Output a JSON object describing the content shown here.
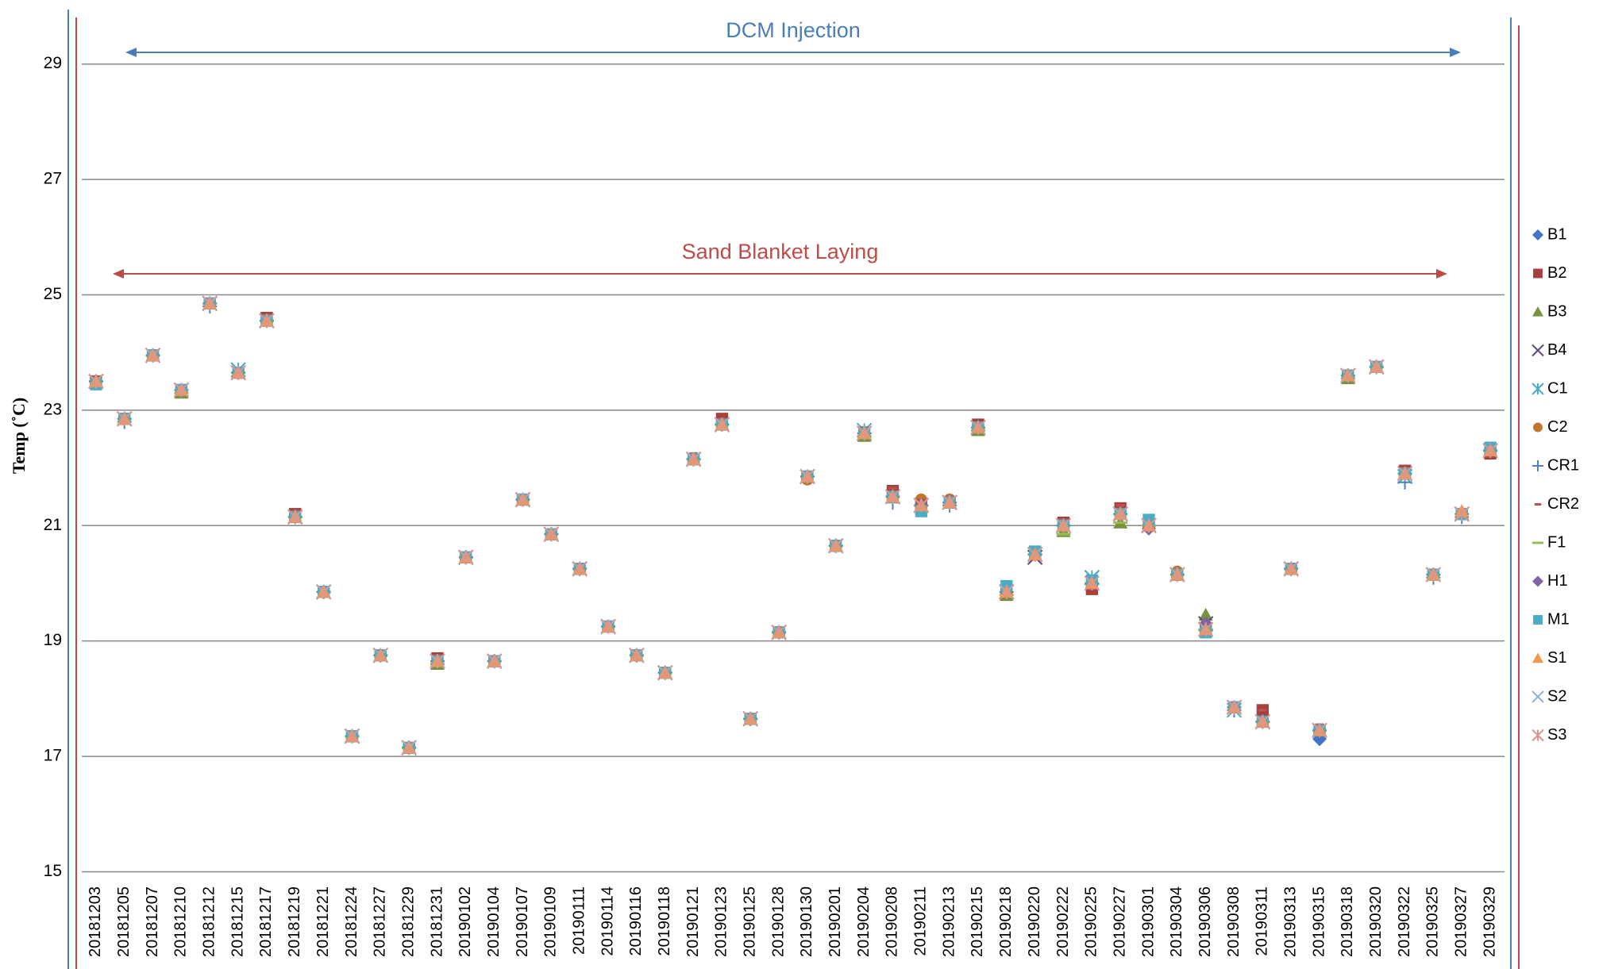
{
  "chart_data": {
    "type": "scatter",
    "y_label": "Temp (˚C)",
    "annotations": [
      {
        "text": "DCM Injection",
        "color": "#4a7ebb"
      },
      {
        "text": "Sand Blanket Laying",
        "color": "#be4b48"
      }
    ],
    "categories": [
      "20181203",
      "20181205",
      "20181207",
      "20181210",
      "20181212",
      "20181215",
      "20181217",
      "20181219",
      "20181221",
      "20181224",
      "20181227",
      "20181229",
      "20181231",
      "20190102",
      "20190104",
      "20190107",
      "20190109",
      "20190111",
      "20190114",
      "20190116",
      "20190118",
      "20190121",
      "20190123",
      "20190125",
      "20190128",
      "20190130",
      "20190201",
      "20190204",
      "20190208",
      "20190211",
      "20190213",
      "20190215",
      "20190218",
      "20190220",
      "20190222",
      "20190225",
      "20190227",
      "20190301",
      "20190304",
      "20190306",
      "20190308",
      "20190311",
      "20190313",
      "20190315",
      "20190318",
      "20190320",
      "20190322",
      "20190325",
      "20190327",
      "20190329"
    ],
    "ylim": [
      14.8,
      30
    ],
    "yticks": [
      15,
      17,
      19,
      21,
      23,
      25,
      27,
      29
    ],
    "grid": true,
    "legend": "right",
    "series": [
      {
        "name": "B1",
        "color": "#4472c4",
        "marker": "diamond",
        "values": [
          23.5,
          22.85,
          23.95,
          23.35,
          24.85,
          23.65,
          24.55,
          21.15,
          19.85,
          17.35,
          18.75,
          17.15,
          18.65,
          20.45,
          18.65,
          21.45,
          20.85,
          20.25,
          19.25,
          18.75,
          18.45,
          22.15,
          22.75,
          17.65,
          19.15,
          21.85,
          20.65,
          22.6,
          21.5,
          21.35,
          21.4,
          22.7,
          19.85,
          20.5,
          21.0,
          20.0,
          21.2,
          21.0,
          20.15,
          19.2,
          17.85,
          17.6,
          20.25,
          17.3,
          23.6,
          23.75,
          21.9,
          20.15,
          21.2,
          22.3
        ]
      },
      {
        "name": "B2",
        "color": "#a5403d",
        "marker": "square",
        "values": [
          23.5,
          22.85,
          23.95,
          23.35,
          24.85,
          23.65,
          24.6,
          21.2,
          19.85,
          17.35,
          18.75,
          17.15,
          18.7,
          20.45,
          18.65,
          21.45,
          20.85,
          20.25,
          19.25,
          18.75,
          18.45,
          22.15,
          22.85,
          17.65,
          19.15,
          21.85,
          20.65,
          22.6,
          21.6,
          21.35,
          21.4,
          22.75,
          19.8,
          20.5,
          21.05,
          19.9,
          21.3,
          21.0,
          20.15,
          19.2,
          17.85,
          17.8,
          20.25,
          17.45,
          23.6,
          23.75,
          21.95,
          20.15,
          21.2,
          22.25
        ]
      },
      {
        "name": "B3",
        "color": "#77933c",
        "marker": "triangle",
        "values": [
          23.5,
          22.85,
          23.95,
          23.3,
          24.85,
          23.65,
          24.55,
          21.15,
          19.85,
          17.35,
          18.75,
          17.15,
          18.6,
          20.45,
          18.65,
          21.45,
          20.85,
          20.25,
          19.25,
          18.75,
          18.45,
          22.15,
          22.75,
          17.65,
          19.15,
          21.85,
          20.65,
          22.55,
          21.5,
          21.35,
          21.4,
          22.65,
          19.8,
          20.5,
          20.9,
          20.0,
          21.05,
          21.0,
          20.15,
          19.45,
          17.85,
          17.6,
          20.25,
          17.45,
          23.55,
          23.75,
          21.9,
          20.15,
          21.2,
          22.3
        ]
      },
      {
        "name": "B4",
        "color": "#604a7b",
        "marker": "x",
        "values": [
          23.5,
          22.85,
          23.95,
          23.35,
          24.85,
          23.65,
          24.55,
          21.15,
          19.85,
          17.35,
          18.75,
          17.15,
          18.65,
          20.45,
          18.65,
          21.45,
          20.85,
          20.25,
          19.25,
          18.75,
          18.45,
          22.15,
          22.75,
          17.65,
          19.15,
          21.85,
          20.65,
          22.6,
          21.5,
          21.35,
          21.4,
          22.7,
          19.85,
          20.45,
          21.0,
          20.1,
          21.2,
          21.0,
          20.15,
          19.3,
          17.85,
          17.6,
          20.25,
          17.45,
          23.6,
          23.75,
          21.9,
          20.15,
          21.2,
          22.3
        ]
      },
      {
        "name": "C1",
        "color": "#4bacc6",
        "marker": "asterisk",
        "values": [
          23.5,
          22.85,
          23.95,
          23.35,
          24.85,
          23.7,
          24.55,
          21.15,
          19.85,
          17.35,
          18.75,
          17.15,
          18.65,
          20.45,
          18.65,
          21.45,
          20.85,
          20.25,
          19.25,
          18.75,
          18.45,
          22.15,
          22.75,
          17.65,
          19.15,
          21.85,
          20.65,
          22.65,
          21.5,
          21.35,
          21.4,
          22.7,
          19.85,
          20.5,
          21.0,
          20.1,
          21.2,
          21.0,
          20.15,
          19.2,
          17.8,
          17.6,
          20.25,
          17.45,
          23.6,
          23.75,
          21.85,
          20.15,
          21.2,
          22.3
        ]
      },
      {
        "name": "C2",
        "color": "#c0762e",
        "marker": "circle",
        "values": [
          23.5,
          22.85,
          23.95,
          23.35,
          24.85,
          23.65,
          24.55,
          21.15,
          19.85,
          17.35,
          18.75,
          17.15,
          18.65,
          20.45,
          18.65,
          21.45,
          20.85,
          20.25,
          19.25,
          18.75,
          18.45,
          22.15,
          22.75,
          17.65,
          19.15,
          21.8,
          20.65,
          22.6,
          21.5,
          21.45,
          21.45,
          22.7,
          19.85,
          20.5,
          21.0,
          20.0,
          21.2,
          21.0,
          20.2,
          19.2,
          17.85,
          17.6,
          20.25,
          17.45,
          23.6,
          23.75,
          21.9,
          20.15,
          21.2,
          22.3
        ]
      },
      {
        "name": "CR1",
        "color": "#4f81bd",
        "marker": "plus",
        "values": [
          23.5,
          22.8,
          23.95,
          23.35,
          24.8,
          23.65,
          24.55,
          21.15,
          19.85,
          17.35,
          18.75,
          17.15,
          18.65,
          20.45,
          18.65,
          21.45,
          20.85,
          20.25,
          19.25,
          18.75,
          18.45,
          22.15,
          22.75,
          17.65,
          19.15,
          21.85,
          20.65,
          22.6,
          21.4,
          21.35,
          21.35,
          22.7,
          19.85,
          20.5,
          21.0,
          20.0,
          21.2,
          21.0,
          20.15,
          19.2,
          17.8,
          17.6,
          20.25,
          17.45,
          23.6,
          23.75,
          21.75,
          20.1,
          21.15,
          22.3
        ]
      },
      {
        "name": "CR2",
        "color": "#c0504d",
        "marker": "dash",
        "values": [
          23.55,
          22.85,
          23.95,
          23.35,
          24.85,
          23.65,
          24.65,
          21.25,
          19.85,
          17.35,
          18.75,
          17.2,
          18.75,
          20.45,
          18.65,
          21.45,
          20.9,
          20.3,
          19.3,
          18.75,
          18.5,
          22.25,
          22.85,
          17.65,
          19.2,
          21.9,
          20.65,
          22.7,
          21.65,
          21.45,
          21.5,
          22.75,
          19.8,
          20.45,
          21.1,
          19.9,
          21.35,
          21.0,
          20.15,
          19.2,
          17.85,
          17.8,
          20.3,
          17.55,
          23.65,
          23.8,
          22.0,
          20.15,
          21.25,
          22.2
        ]
      },
      {
        "name": "F1",
        "color": "#9bbb59",
        "marker": "longdash",
        "values": [
          23.5,
          22.85,
          23.95,
          23.3,
          24.85,
          23.65,
          24.55,
          21.15,
          19.85,
          17.35,
          18.75,
          17.15,
          18.6,
          20.45,
          18.65,
          21.45,
          20.85,
          20.25,
          19.25,
          18.75,
          18.45,
          22.15,
          22.75,
          17.65,
          19.15,
          21.85,
          20.65,
          22.55,
          21.5,
          21.35,
          21.4,
          22.65,
          19.8,
          20.5,
          20.85,
          20.0,
          21.05,
          21.0,
          20.15,
          19.2,
          17.85,
          17.6,
          20.25,
          17.45,
          23.55,
          23.75,
          21.9,
          20.15,
          21.2,
          22.3
        ]
      },
      {
        "name": "H1",
        "color": "#8064a2",
        "marker": "diamond",
        "values": [
          23.5,
          22.85,
          23.95,
          23.35,
          24.85,
          23.65,
          24.55,
          21.15,
          19.85,
          17.35,
          18.75,
          17.15,
          18.65,
          20.45,
          18.65,
          21.45,
          20.85,
          20.25,
          19.25,
          18.75,
          18.45,
          22.15,
          22.75,
          17.65,
          19.15,
          21.85,
          20.65,
          22.6,
          21.5,
          21.35,
          21.4,
          22.7,
          19.85,
          20.5,
          21.0,
          20.0,
          21.2,
          20.95,
          20.15,
          19.3,
          17.85,
          17.6,
          20.25,
          17.45,
          23.6,
          23.75,
          21.9,
          20.15,
          21.2,
          22.3
        ]
      },
      {
        "name": "M1",
        "color": "#4bacc6",
        "marker": "square",
        "values": [
          23.45,
          22.85,
          23.95,
          23.35,
          24.85,
          23.65,
          24.55,
          21.15,
          19.85,
          17.35,
          18.75,
          17.15,
          18.65,
          20.45,
          18.65,
          21.45,
          20.85,
          20.25,
          19.25,
          18.75,
          18.45,
          22.15,
          22.75,
          17.65,
          19.15,
          21.85,
          20.65,
          22.6,
          21.5,
          21.25,
          21.4,
          22.7,
          19.95,
          20.55,
          21.0,
          20.05,
          21.2,
          21.1,
          20.15,
          19.15,
          17.85,
          17.6,
          20.25,
          17.45,
          23.6,
          23.75,
          21.9,
          20.15,
          21.2,
          22.35
        ]
      },
      {
        "name": "S1",
        "color": "#f79646",
        "marker": "triangle",
        "values": [
          23.5,
          22.85,
          23.95,
          23.35,
          24.85,
          23.65,
          24.55,
          21.15,
          19.85,
          17.35,
          18.75,
          17.15,
          18.65,
          20.45,
          18.65,
          21.45,
          20.85,
          20.25,
          19.25,
          18.75,
          18.45,
          22.15,
          22.75,
          17.65,
          19.15,
          21.85,
          20.65,
          22.6,
          21.5,
          21.35,
          21.4,
          22.7,
          19.85,
          20.5,
          21.0,
          20.0,
          21.2,
          21.0,
          20.15,
          19.2,
          17.85,
          17.6,
          20.25,
          17.45,
          23.6,
          23.75,
          21.9,
          20.15,
          21.25,
          22.3
        ]
      },
      {
        "name": "S2",
        "color": "#95b3d7",
        "marker": "x",
        "values": [
          23.5,
          22.85,
          23.95,
          23.35,
          24.85,
          23.65,
          24.55,
          21.15,
          19.85,
          17.35,
          18.75,
          17.15,
          18.65,
          20.45,
          18.65,
          21.45,
          20.85,
          20.25,
          19.25,
          18.75,
          18.45,
          22.15,
          22.75,
          17.65,
          19.15,
          21.85,
          20.65,
          22.6,
          21.5,
          21.35,
          21.4,
          22.7,
          19.85,
          20.5,
          21.0,
          20.0,
          21.2,
          21.0,
          20.15,
          19.2,
          17.85,
          17.6,
          20.25,
          17.45,
          23.6,
          23.75,
          21.9,
          20.15,
          21.2,
          22.3
        ]
      },
      {
        "name": "S3",
        "color": "#d99694",
        "marker": "asterisk",
        "values": [
          23.5,
          22.85,
          23.95,
          23.35,
          24.85,
          23.65,
          24.55,
          21.15,
          19.85,
          17.35,
          18.75,
          17.15,
          18.65,
          20.45,
          18.65,
          21.45,
          20.85,
          20.25,
          19.25,
          18.75,
          18.45,
          22.15,
          22.75,
          17.65,
          19.15,
          21.85,
          20.65,
          22.6,
          21.5,
          21.35,
          21.4,
          22.7,
          19.85,
          20.5,
          21.0,
          20.0,
          21.2,
          21.0,
          20.15,
          19.2,
          17.85,
          17.6,
          20.25,
          17.45,
          23.6,
          23.75,
          21.9,
          20.15,
          21.2,
          22.3
        ]
      }
    ]
  }
}
